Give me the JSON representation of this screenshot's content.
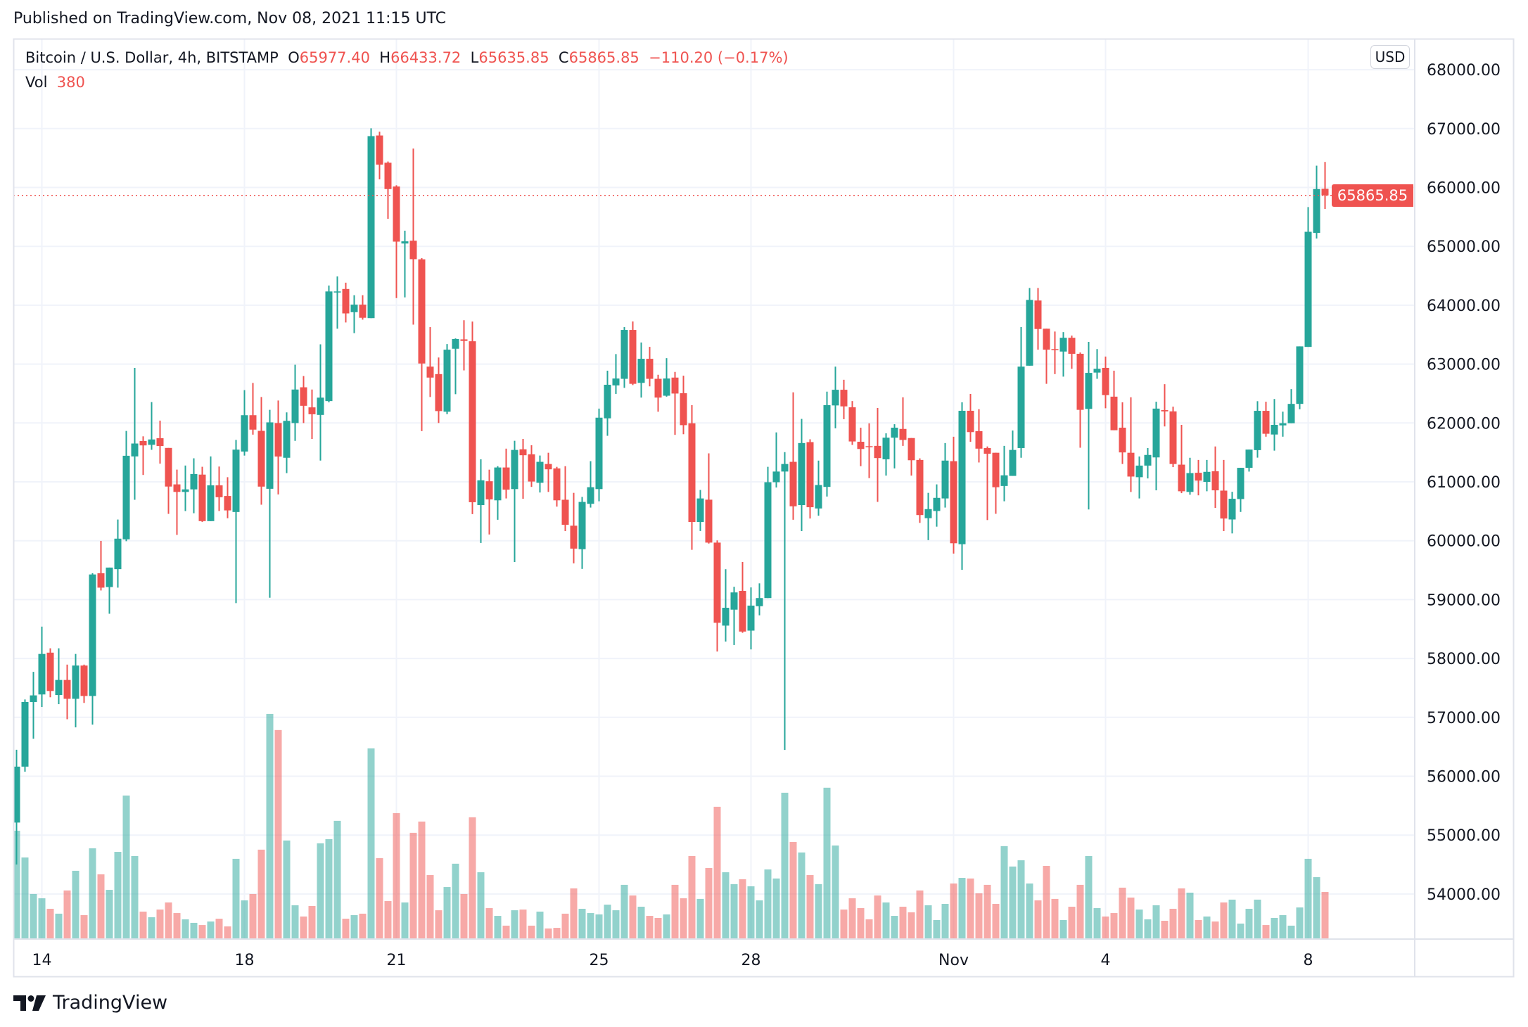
{
  "header": {
    "published": "Published on TradingView.com, Nov 08, 2021 11:15 UTC"
  },
  "legend": {
    "symbol": "Bitcoin / U.S. Dollar, 4h, BITSTAMP",
    "o_label": "O",
    "o_value": "65977.40",
    "h_label": "H",
    "h_value": "66433.72",
    "l_label": "L",
    "l_value": "65635.85",
    "c_label": "C",
    "c_value": "65865.85",
    "change": "−110.20 (−0.17%)",
    "vol_label": "Vol",
    "vol_value": "380"
  },
  "price_axis": {
    "currency": "USD",
    "last_price_label": "65865.85"
  },
  "logo": {
    "text": "TradingView"
  },
  "colors": {
    "up": "#26a69a",
    "down": "#ef5350",
    "grid": "#f0f3fa",
    "text": "#131722"
  },
  "chart_data": {
    "type": "candlestick",
    "interval": "4h",
    "ylim": [
      53300,
      68400
    ],
    "last_price": 65865.85,
    "y_ticks": [
      "54000.00",
      "55000.00",
      "56000.00",
      "57000.00",
      "58000.00",
      "59000.00",
      "60000.00",
      "61000.00",
      "62000.00",
      "63000.00",
      "64000.00",
      "65000.00",
      "66000.00",
      "67000.00",
      "68000.00"
    ],
    "x_ticks": [
      {
        "label": "14",
        "index": 3
      },
      {
        "label": "18",
        "index": 27
      },
      {
        "label": "21",
        "index": 45
      },
      {
        "label": "25",
        "index": 69
      },
      {
        "label": "28",
        "index": 87
      },
      {
        "label": "Nov",
        "index": 111
      },
      {
        "label": "4",
        "index": 129
      },
      {
        "label": "8",
        "index": 153
      }
    ],
    "ohlc": [
      [
        55213,
        56450,
        54500,
        56163
      ],
      [
        56163,
        57304,
        56077,
        57261
      ],
      [
        57261,
        57773,
        56637,
        57373
      ],
      [
        57389,
        58541,
        57176,
        58077
      ],
      [
        58099,
        58173,
        57341,
        57448
      ],
      [
        57379,
        58173,
        57224,
        57635
      ],
      [
        57635,
        57896,
        56968,
        57315
      ],
      [
        57315,
        58077,
        56830,
        57880
      ],
      [
        57880,
        57896,
        57245,
        57363
      ],
      [
        57363,
        59448,
        56877,
        59427
      ],
      [
        59448,
        59997,
        59155,
        59203
      ],
      [
        59213,
        59544,
        58760,
        59544
      ],
      [
        59517,
        60360,
        59203,
        60035
      ],
      [
        60024,
        61864,
        59992,
        61443
      ],
      [
        61432,
        62936,
        60696,
        61651
      ],
      [
        61693,
        61773,
        61117,
        61619
      ],
      [
        61629,
        62355,
        61544,
        61720
      ],
      [
        61741,
        62040,
        61309,
        61608
      ],
      [
        61576,
        61576,
        60456,
        60920
      ],
      [
        60957,
        61208,
        60099,
        60829
      ],
      [
        60829,
        61277,
        60504,
        60872
      ],
      [
        60872,
        61400,
        60467,
        61133
      ],
      [
        61123,
        61256,
        60320,
        60333
      ],
      [
        60333,
        61432,
        60333,
        60941
      ],
      [
        60941,
        61260,
        60505,
        60739
      ],
      [
        60760,
        61079,
        60382,
        60515
      ],
      [
        60488,
        61712,
        58940,
        61547
      ],
      [
        61515,
        62558,
        61446,
        62132
      ],
      [
        62132,
        62680,
        61802,
        61887
      ],
      [
        61866,
        62441,
        60611,
        60919
      ],
      [
        60882,
        62223,
        59031,
        62010
      ],
      [
        61999,
        62382,
        60786,
        61430
      ],
      [
        61409,
        62180,
        61148,
        62036
      ],
      [
        61999,
        62989,
        61696,
        62568
      ],
      [
        62606,
        62797,
        61999,
        62292
      ],
      [
        62265,
        62568,
        61728,
        62148
      ],
      [
        62137,
        63335,
        61361,
        62430
      ],
      [
        62372,
        64335,
        62350,
        64234
      ],
      [
        64223,
        64489,
        63601,
        64234
      ],
      [
        64276,
        64383,
        63707,
        63861
      ],
      [
        63882,
        64170,
        63526,
        64010
      ],
      [
        64010,
        64170,
        63755,
        63787
      ],
      [
        63781,
        67005,
        63781,
        66872
      ],
      [
        66883,
        66947,
        66138,
        66388
      ],
      [
        66420,
        66441,
        65468,
        65973
      ],
      [
        66016,
        66037,
        64122,
        65080
      ],
      [
        65048,
        65266,
        64133,
        65085
      ],
      [
        65096,
        66660,
        63670,
        64782
      ],
      [
        64780,
        64800,
        61861,
        63010
      ],
      [
        62957,
        63628,
        62441,
        62771
      ],
      [
        62830,
        63112,
        62000,
        62202
      ],
      [
        62191,
        63340,
        62149,
        63245
      ],
      [
        63261,
        63436,
        62489,
        63426
      ],
      [
        63420,
        63745,
        62893,
        63394
      ],
      [
        63388,
        63723,
        60452,
        60654
      ],
      [
        60606,
        61383,
        59962,
        61026
      ],
      [
        61010,
        61207,
        60106,
        60702
      ],
      [
        60686,
        61266,
        60356,
        61244
      ],
      [
        61244,
        61564,
        60718,
        60867
      ],
      [
        60877,
        61697,
        59638,
        61542
      ],
      [
        61553,
        61729,
        60712,
        61452
      ],
      [
        61468,
        61622,
        60914,
        61005
      ],
      [
        60984,
        61447,
        60819,
        61340
      ],
      [
        61303,
        61494,
        60829,
        61213
      ],
      [
        61228,
        61255,
        60579,
        60686
      ],
      [
        60696,
        61266,
        60164,
        60271
      ],
      [
        60255,
        60813,
        59616,
        59866
      ],
      [
        59856,
        60744,
        59521,
        60659
      ],
      [
        60627,
        61351,
        60563,
        60909
      ],
      [
        60877,
        62244,
        60670,
        62090
      ],
      [
        62079,
        62888,
        61782,
        62649
      ],
      [
        62638,
        63170,
        62494,
        62755
      ],
      [
        62750,
        63628,
        62596,
        63580
      ],
      [
        63580,
        63724,
        62644,
        62665
      ],
      [
        62681,
        63367,
        62431,
        63090
      ],
      [
        63090,
        63293,
        62622,
        62750
      ],
      [
        62750,
        62819,
        62191,
        62431
      ],
      [
        62463,
        63101,
        62447,
        62755
      ],
      [
        62771,
        62867,
        61798,
        62500
      ],
      [
        62505,
        62803,
        61809,
        61963
      ],
      [
        61995,
        62303,
        59845,
        60319
      ],
      [
        60319,
        60862,
        60165,
        60718
      ],
      [
        60697,
        61484,
        59952,
        59968
      ],
      [
        59968,
        60005,
        58117,
        58606
      ],
      [
        58558,
        59516,
        58287,
        58861
      ],
      [
        58829,
        59218,
        58229,
        59122
      ],
      [
        59148,
        59638,
        58436,
        58457
      ],
      [
        58473,
        59207,
        58154,
        58898
      ],
      [
        58888,
        59276,
        58733,
        59026
      ],
      [
        59026,
        61255,
        59026,
        60994
      ],
      [
        60994,
        61840,
        60904,
        61175
      ],
      [
        61175,
        61505,
        56446,
        61303
      ],
      [
        61340,
        62521,
        60356,
        60585
      ],
      [
        60606,
        62069,
        60164,
        61659
      ],
      [
        61675,
        61723,
        60377,
        60569
      ],
      [
        60548,
        61361,
        60425,
        60946
      ],
      [
        60914,
        62532,
        60750,
        62303
      ],
      [
        62298,
        62957,
        61909,
        62564
      ],
      [
        62564,
        62734,
        62064,
        62282
      ],
      [
        62266,
        62372,
        61627,
        61686
      ],
      [
        61681,
        61920,
        61266,
        61558
      ],
      [
        61606,
        61994,
        61063,
        61595
      ],
      [
        61611,
        62255,
        60659,
        61404
      ],
      [
        61383,
        61824,
        61106,
        61750
      ],
      [
        61750,
        61979,
        61228,
        61920
      ],
      [
        61899,
        62436,
        61611,
        61712
      ],
      [
        61744,
        61744,
        61106,
        61367
      ],
      [
        61372,
        61399,
        60303,
        60436
      ],
      [
        60383,
        60813,
        60010,
        60537
      ],
      [
        60505,
        60957,
        60239,
        60728
      ],
      [
        60718,
        61659,
        60563,
        61361
      ],
      [
        61351,
        61766,
        59781,
        59957
      ],
      [
        59941,
        62351,
        59505,
        62207
      ],
      [
        62207,
        62494,
        61681,
        61845
      ],
      [
        61861,
        62234,
        61329,
        61564
      ],
      [
        61574,
        61601,
        60351,
        61478
      ],
      [
        61494,
        61494,
        60457,
        60909
      ],
      [
        60930,
        61611,
        60670,
        61111
      ],
      [
        61101,
        61872,
        61101,
        61542
      ],
      [
        61574,
        63628,
        61409,
        62957
      ],
      [
        62973,
        64293,
        62973,
        64090
      ],
      [
        64080,
        64293,
        63245,
        63596
      ],
      [
        63601,
        63601,
        62665,
        63245
      ],
      [
        63255,
        63553,
        62830,
        63239
      ],
      [
        63213,
        63543,
        62787,
        63447
      ],
      [
        63447,
        63484,
        62920,
        63175
      ],
      [
        63175,
        63197,
        61579,
        62223
      ],
      [
        62239,
        63378,
        60531,
        62851
      ],
      [
        62856,
        63255,
        62750,
        62920
      ],
      [
        62936,
        63128,
        62250,
        62473
      ],
      [
        62447,
        62888,
        61877,
        61877
      ],
      [
        61920,
        62351,
        61303,
        61500
      ],
      [
        61494,
        62436,
        60829,
        61090
      ],
      [
        61079,
        61431,
        60718,
        61276
      ],
      [
        61276,
        61574,
        61058,
        61457
      ],
      [
        61415,
        62361,
        60856,
        62244
      ],
      [
        62218,
        62659,
        61941,
        62197
      ],
      [
        62197,
        62277,
        61250,
        61303
      ],
      [
        61292,
        61968,
        60808,
        60840
      ],
      [
        60829,
        61409,
        60781,
        61149
      ],
      [
        61154,
        61372,
        60771,
        61021
      ],
      [
        61000,
        61372,
        60840,
        61170
      ],
      [
        61180,
        61601,
        60558,
        60856
      ],
      [
        60851,
        61372,
        60164,
        60377
      ],
      [
        60361,
        60831,
        60124,
        60713
      ],
      [
        60708,
        61238,
        60489,
        61238
      ],
      [
        61238,
        61548,
        61174,
        61548
      ],
      [
        61539,
        62370,
        61411,
        62206
      ],
      [
        62206,
        62361,
        61767,
        61817
      ],
      [
        61804,
        62407,
        61530,
        61968
      ],
      [
        61959,
        62192,
        61767,
        61996
      ],
      [
        61996,
        62575,
        61996,
        62324
      ],
      [
        62324,
        63301,
        62233,
        63301
      ],
      [
        63292,
        65667,
        63292,
        65247
      ],
      [
        65228,
        66370,
        65132,
        65973
      ],
      [
        65977.4,
        66433.72,
        65635.85,
        65865.85
      ]
    ],
    "volume": [
      881,
      662,
      363,
      328,
      242,
      202,
      392,
      553,
      190,
      737,
      524,
      397,
      708,
      1169,
      674,
      219,
      173,
      236,
      294,
      207,
      156,
      127,
      109,
      138,
      161,
      98,
      651,
      311,
      363,
      726,
      1837,
      1705,
      801,
      271,
      179,
      265,
      778,
      812,
      962,
      161,
      190,
      202,
      1555,
      657,
      305,
      1025,
      294,
      864,
      956,
      518,
      230,
      420,
      611,
      363,
      991,
      541,
      248,
      184,
      104,
      230,
      236,
      104,
      219,
      81,
      86,
      202,
      409,
      242,
      207,
      196,
      276,
      230,
      438,
      351,
      259,
      184,
      167,
      196,
      438,
      328,
      674,
      323,
      576,
      1077,
      541,
      444,
      484,
      426,
      311,
      564,
      490,
      1192,
      789,
      703,
      518,
      444,
      1233,
      760,
      236,
      328,
      248,
      156,
      351,
      294,
      184,
      259,
      213,
      392,
      271,
      150,
      282,
      449,
      495,
      490,
      369,
      438,
      282,
      755,
      588,
      639,
      449,
      311,
      593,
      323,
      150,
      259,
      438,
      674,
      248,
      179,
      207,
      415,
      334,
      236,
      156,
      271,
      144,
      242,
      409,
      374,
      150,
      179,
      138,
      294,
      317,
      121,
      242,
      317,
      109,
      167,
      190,
      104,
      253,
      651,
      501,
      380
    ]
  }
}
